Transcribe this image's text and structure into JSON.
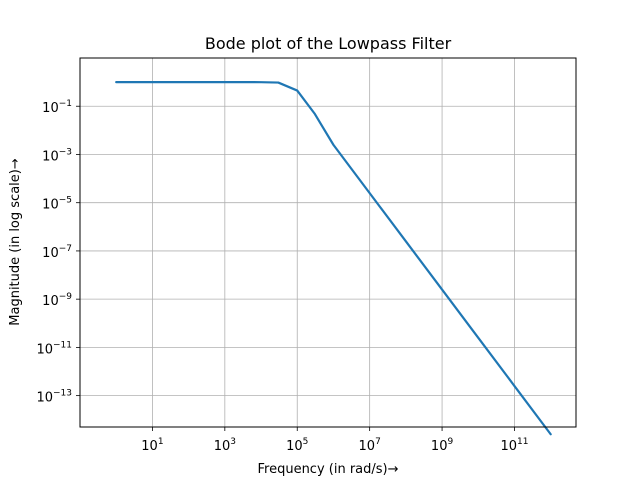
{
  "chart_data": {
    "type": "line",
    "title": "Bode plot of the Lowpass Filter",
    "xlabel": "Frequency (in rad/s)→",
    "ylabel": "Magnitude (in log scale)→",
    "xscale": "log",
    "yscale": "log",
    "xlim": [
      0.1,
      5000000000000.0
    ],
    "ylim": [
      5e-15,
      10
    ],
    "grid": true,
    "x_ticks": [
      {
        "base": "10",
        "exp": "1"
      },
      {
        "base": "10",
        "exp": "3"
      },
      {
        "base": "10",
        "exp": "5"
      },
      {
        "base": "10",
        "exp": "7"
      },
      {
        "base": "10",
        "exp": "9"
      },
      {
        "base": "10",
        "exp": "11"
      }
    ],
    "y_ticks": [
      {
        "base": "10",
        "exp": "−1"
      },
      {
        "base": "10",
        "exp": "−3"
      },
      {
        "base": "10",
        "exp": "−5"
      },
      {
        "base": "10",
        "exp": "−7"
      },
      {
        "base": "10",
        "exp": "−9"
      },
      {
        "base": "10",
        "exp": "−11"
      },
      {
        "base": "10",
        "exp": "−13"
      }
    ],
    "series": [
      {
        "color": "#1f77b4",
        "x": [
          1,
          1000,
          10000,
          30000,
          100000,
          300000,
          1000000,
          10000000,
          100000000,
          1000000000,
          10000000000,
          100000000000,
          1000000000000
        ],
        "y": [
          1,
          1,
          0.995,
          0.958,
          0.447,
          0.05,
          0.0025,
          2.5e-05,
          2.5e-07,
          2.5e-09,
          2.5e-11,
          2.5e-13,
          2.5e-15
        ]
      }
    ]
  }
}
